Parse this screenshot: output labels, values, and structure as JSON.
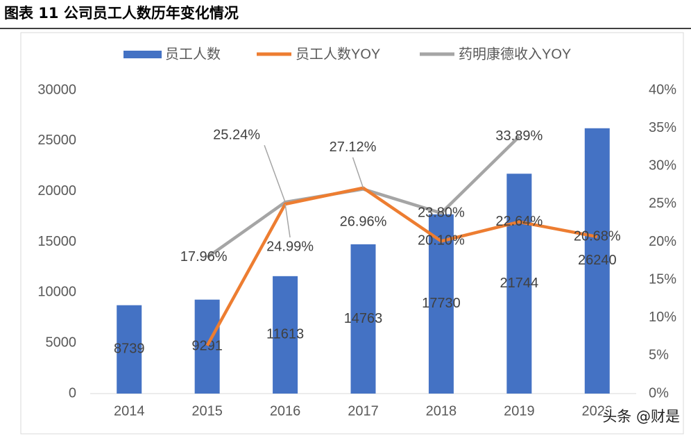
{
  "chart_data": {
    "type": "bar-line",
    "title": "图表 11 公司员工人数历年变化情况",
    "categories": [
      "2014",
      "2015",
      "2016",
      "2017",
      "2018",
      "2019",
      "2020"
    ],
    "series": [
      {
        "name": "员工人数",
        "color": "#4472c4",
        "type": "bar",
        "values": [
          8739,
          9291,
          11613,
          14763,
          17730,
          21744,
          26240
        ]
      },
      {
        "name": "员工人数YOY",
        "color": "#ed7d31",
        "type": "line",
        "axis": "y2",
        "values": [
          null,
          6.32,
          24.99,
          27.12,
          20.1,
          22.64,
          20.68
        ],
        "value_labels": [
          null,
          null,
          "24.99%",
          "27.12%",
          "20.10%",
          "22.64%",
          "20.68%"
        ]
      },
      {
        "name": "药明康德收入YOY",
        "color": "#a5a5a5",
        "type": "line",
        "axis": "y2",
        "values": [
          null,
          17.96,
          25.24,
          26.96,
          23.8,
          33.89,
          null
        ],
        "value_labels": [
          null,
          "17.96%",
          "25.24%",
          "26.96%",
          "23.80%",
          "33.89%",
          null
        ]
      }
    ],
    "ylim": [
      0,
      30000
    ],
    "yticks": [
      0,
      5000,
      10000,
      15000,
      20000,
      25000,
      30000
    ],
    "y2lim": [
      0,
      40
    ],
    "y2ticks": [
      {
        "value": 0,
        "label": "0%"
      },
      {
        "value": 5,
        "label": "5%"
      },
      {
        "value": 10,
        "label": "10%"
      },
      {
        "value": 15,
        "label": "15%"
      },
      {
        "value": 20,
        "label": "20%"
      },
      {
        "value": 25,
        "label": "25%"
      },
      {
        "value": 30,
        "label": "30%"
      },
      {
        "value": 35,
        "label": "35%"
      },
      {
        "value": 40,
        "label": "40%"
      }
    ],
    "legend": "top",
    "grid": false
  },
  "watermark": "头条 @财是"
}
